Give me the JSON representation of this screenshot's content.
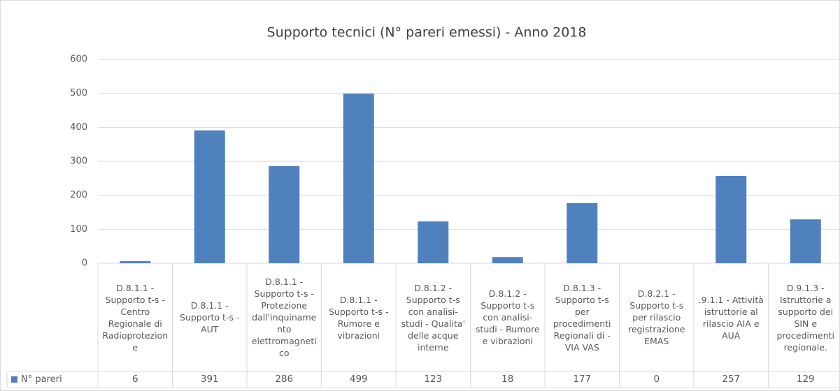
{
  "chart_data": {
    "type": "bar",
    "title": "Supporto tecnici (N° pareri emessi) - Anno 2018",
    "categories": [
      "D.8.1.1 - Supporto t-s - Centro Regionale di Radioprotezione",
      "D.8.1.1 - Supporto t-s - AUT",
      "D.8.1.1 - Supporto t-s - Protezione dall'inquinamento elettromagnetico",
      "D.8.1.1 - Supporto t-s - Rumore e vibrazioni",
      "D.8.1.2 - Supporto t-s con analisi-studi - Qualita' delle acque interne",
      "D.8.1.2 - Supporto t-s con analisi-studi - Rumore e vibrazioni",
      "D.8.1.3 - Supporto t-s per procedimenti Regionali di - VIA VAS",
      "D.8.2.1 - Supporto t-s per rilascio registrazione EMAS",
      ".9.1.1 - Attività istruttorie al rilascio AIA e AUA",
      "D.9.1.3 - Istruttorie a supporto dei SIN e procedimenti regionale."
    ],
    "series": [
      {
        "name": "N° pareri",
        "color": "#4f81bd",
        "values": [
          6,
          391,
          286,
          499,
          123,
          18,
          177,
          0,
          257,
          129
        ]
      }
    ],
    "ylim": [
      0,
      600
    ],
    "yticks": [
      0,
      100,
      200,
      300,
      400,
      500,
      600
    ],
    "grid": true,
    "data_table": true
  }
}
